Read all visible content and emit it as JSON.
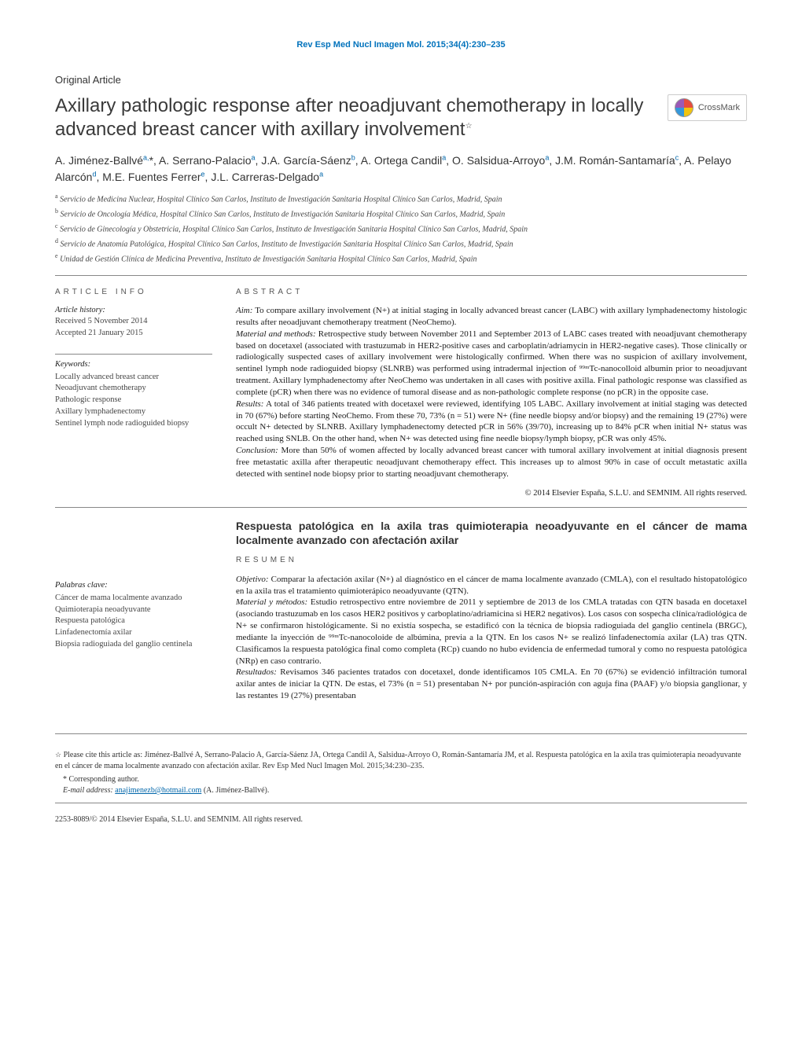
{
  "colors": {
    "journal_header": "#0072bc",
    "link": "#0066aa",
    "text": "#1a1a1a",
    "rule": "#888888",
    "muted": "#555555"
  },
  "journal_header": "Rev Esp Med Nucl Imagen Mol. 2015;34(4):230–235",
  "article_type": "Original Article",
  "title": "Axillary pathologic response after neoadjuvant chemotherapy in locally advanced breast cancer with axillary involvement",
  "title_star": "☆",
  "crossmark_label": "CrossMark",
  "authors_html": "A. Jiménez-Ballvé<sup>a,</sup>*,  A. Serrano-Palacio<sup>a</sup>,  J.A. García-Sáenz<sup>b</sup>,  A. Ortega Candil<sup>a</sup>,  O. Salsidua-Arroyo<sup>a</sup>, J.M. Román-Santamaría<sup>c</sup>,  A. Pelayo Alarcón<sup>d</sup>,  M.E. Fuentes Ferrer<sup>e</sup>,  J.L. Carreras-Delgado<sup>a</sup>",
  "affiliations": [
    {
      "key": "a",
      "text": "Servicio de Medicina Nuclear, Hospital Clínico San Carlos, Instituto de Investigación Sanitaria Hospital Clínico San Carlos, Madrid, Spain"
    },
    {
      "key": "b",
      "text": "Servicio de Oncología Médica, Hospital Clínico San Carlos, Instituto de Investigación Sanitaria Hospital Clínico San Carlos, Madrid, Spain"
    },
    {
      "key": "c",
      "text": "Servicio de Ginecología y Obstetricia, Hospital Clínico San Carlos, Instituto de Investigación Sanitaria Hospital Clínico San Carlos, Madrid, Spain"
    },
    {
      "key": "d",
      "text": "Servicio de Anatomía Patológica, Hospital Clínico San Carlos, Instituto de Investigación Sanitaria Hospital Clínico San Carlos, Madrid, Spain"
    },
    {
      "key": "e",
      "text": "Unidad de Gestión Clínica de Medicina Preventiva, Instituto de Investigación Sanitaria Hospital Clínico San Carlos, Madrid, Spain"
    }
  ],
  "article_info": {
    "heading": "article info",
    "history_label": "Article history:",
    "received": "Received 5 November 2014",
    "accepted": "Accepted 21 January 2015",
    "keywords_label": "Keywords:",
    "keywords": [
      "Locally advanced breast cancer",
      "Neoadjuvant chemotherapy",
      "Pathologic response",
      "Axillary lymphadenectomy",
      "Sentinel lymph node radioguided biopsy"
    ]
  },
  "abstract": {
    "heading": "abstract",
    "segments": [
      {
        "label": "Aim:",
        "text": "To compare axillary involvement (N+) at initial staging in locally advanced breast cancer (LABC) with axillary lymphadenectomy histologic results after neoadjuvant chemotherapy treatment (NeoChemo)."
      },
      {
        "label": "Material and methods:",
        "text": "Retrospective study between November 2011 and September 2013 of LABC cases treated with neoadjuvant chemotherapy based on docetaxel (associated with trastuzumab in HER2-positive cases and carboplatin/adriamycin in HER2-negative cases). Those clinically or radiologically suspected cases of axillary involvement were histologically confirmed. When there was no suspicion of axillary involvement, sentinel lymph node radioguided biopsy (SLNRB) was performed using intradermal injection of ⁹⁹ᵐTc-nanocolloid albumin prior to neoadjuvant treatment. Axillary lymphadenectomy after NeoChemo was undertaken in all cases with positive axilla. Final pathologic response was classified as complete (pCR) when there was no evidence of tumoral disease and as non-pathologic complete response (no pCR) in the opposite case."
      },
      {
        "label": "Results:",
        "text": "A total of 346 patients treated with docetaxel were reviewed, identifying 105 LABC. Axillary involvement at initial staging was detected in 70 (67%) before starting NeoChemo. From these 70, 73% (n = 51) were N+ (fine needle biopsy and/or biopsy) and the remaining 19 (27%) were occult N+ detected by SLNRB. Axillary lymphadenectomy detected pCR in 56% (39/70), increasing up to 84% pCR when initial N+ status was reached using SNLB. On the other hand, when N+ was detected using fine needle biopsy/lymph biopsy, pCR was only 45%."
      },
      {
        "label": "Conclusion:",
        "text": "More than 50% of women affected by locally advanced breast cancer with tumoral axillary involvement at initial diagnosis present free metastatic axilla after therapeutic neoadjuvant chemotherapy effect. This increases up to almost 90% in case of occult metastatic axilla detected with sentinel node biopsy prior to starting neoadjuvant chemotherapy."
      }
    ],
    "copyright": "© 2014 Elsevier España, S.L.U. and SEMNIM. All rights reserved."
  },
  "spanish": {
    "title": "Respuesta patológica en la axila tras quimioterapia neoadyuvante en el cáncer de mama localmente avanzado con afectación axilar",
    "heading": "resumen",
    "palabras_label": "Palabras clave:",
    "palabras": [
      "Cáncer de mama localmente avanzado",
      "Quimioterapia neoadyuvante",
      "Respuesta patológica",
      "Linfadenectomía axilar",
      "Biopsia radioguiada del ganglio centinela"
    ],
    "segments": [
      {
        "label": "Objetivo:",
        "text": "Comparar la afectación axilar (N+) al diagnóstico en el cáncer de mama localmente avanzado (CMLA), con el resultado histopatológico en la axila tras el tratamiento quimioterápico neoadyuvante (QTN)."
      },
      {
        "label": "Material y métodos:",
        "text": "Estudio retrospectivo entre noviembre de 2011 y septiembre de 2013 de los CMLA tratadas con QTN basada en docetaxel (asociando trastuzumab en los casos HER2 positivos y carboplatino/adriamicina si HER2 negativos). Los casos con sospecha clínica/radiológica de N+ se confirmaron histológicamente. Si no existía sospecha, se estadificó con la técnica de biopsia radioguiada del ganglio centinela (BRGC), mediante la inyección de ⁹⁹ᵐTc-nanocoloide de albúmina, previa a la QTN. En los casos N+ se realizó linfadenectomía axilar (LA) tras QTN. Clasificamos la respuesta patológica final como completa (RCp) cuando no hubo evidencia de enfermedad tumoral y como no respuesta patológica (NRp) en caso contrario."
      },
      {
        "label": "Resultados:",
        "text": "Revisamos 346 pacientes tratados con docetaxel, donde identificamos 105 CMLA. En 70 (67%) se evidenció infiltración tumoral axilar antes de iniciar la QTN. De estas, el 73% (n = 51) presentaban N+ por punción-aspiración con aguja fina (PAAF) y/o biopsia ganglionar, y las restantes 19 (27%) presentaban"
      }
    ]
  },
  "footnotes": {
    "cite_star": "☆",
    "cite_text": "Please cite this article as: Jiménez-Ballvé A, Serrano-Palacio A, García-Sáenz JA, Ortega Candil A, Salsidua-Arroyo O, Román-Santamaría JM, et al. Respuesta patológica en la axila tras quimioterapia neoadyuvante en el cáncer de mama localmente avanzado con afectación axilar. Rev Esp Med Nucl Imagen Mol. 2015;34:230–235.",
    "corr_label": "* Corresponding author.",
    "email_label": "E-mail address:",
    "email": "anajimenezb@hotmail.com",
    "email_suffix": "(A. Jiménez-Ballvé)."
  },
  "bottom": "2253-8089/© 2014 Elsevier España, S.L.U. and SEMNIM. All rights reserved."
}
